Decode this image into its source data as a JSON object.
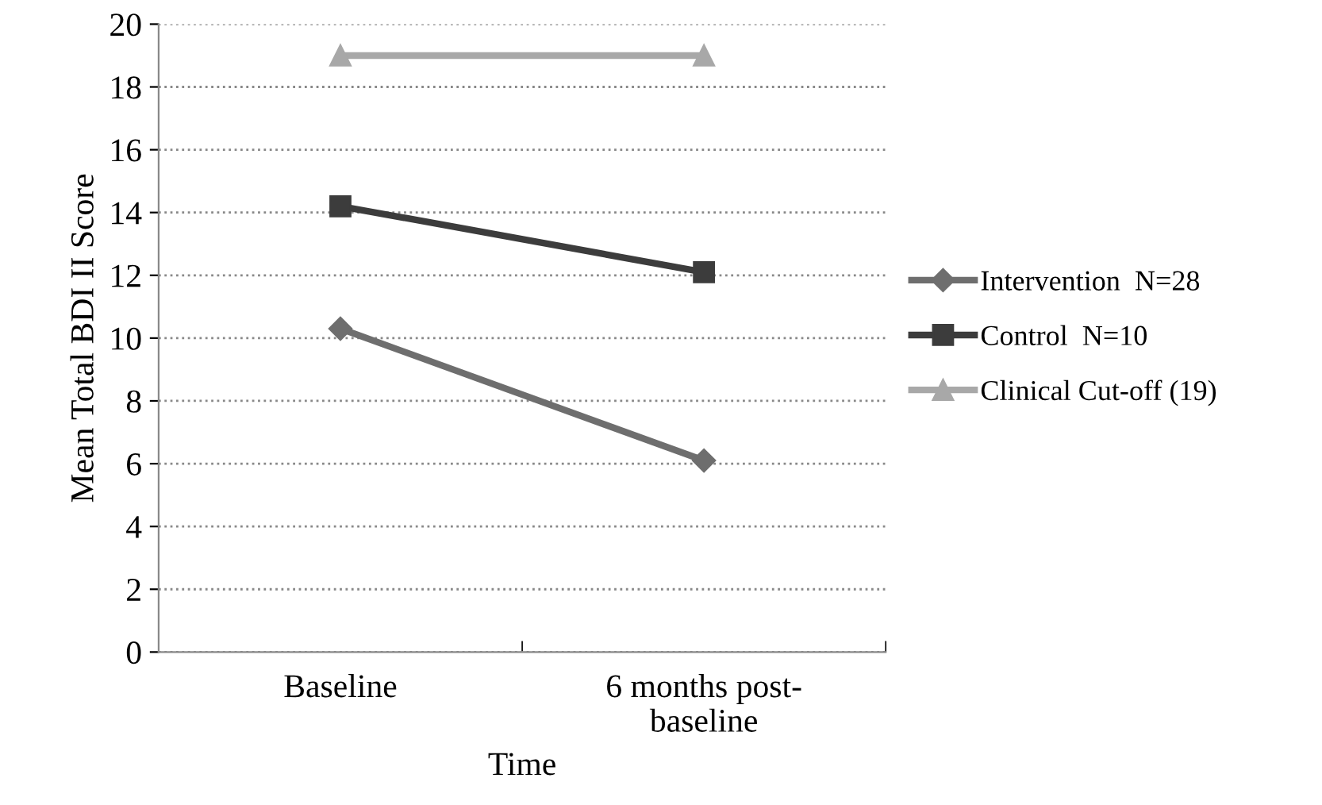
{
  "chart_data": {
    "type": "line",
    "xlabel": "Time",
    "ylabel": "Mean Total BDI II Score",
    "categories": [
      "Baseline",
      "6 months post-\nbaseline"
    ],
    "series": [
      {
        "name": "Intervention  N=28",
        "color": "#6e6e6e",
        "marker": "diamond",
        "values": [
          10.3,
          6.1
        ]
      },
      {
        "name": "Control  N=10",
        "color": "#3c3c3c",
        "marker": "square",
        "values": [
          14.2,
          12.1
        ]
      },
      {
        "name": "Clinical Cut-off (19)",
        "color": "#a8a8a8",
        "marker": "triangle",
        "values": [
          19,
          19
        ]
      }
    ],
    "ylim": [
      0,
      20
    ],
    "yticks": [
      0,
      2,
      4,
      6,
      8,
      10,
      12,
      14,
      16,
      18,
      20
    ],
    "grid": "y",
    "legend": "right"
  }
}
